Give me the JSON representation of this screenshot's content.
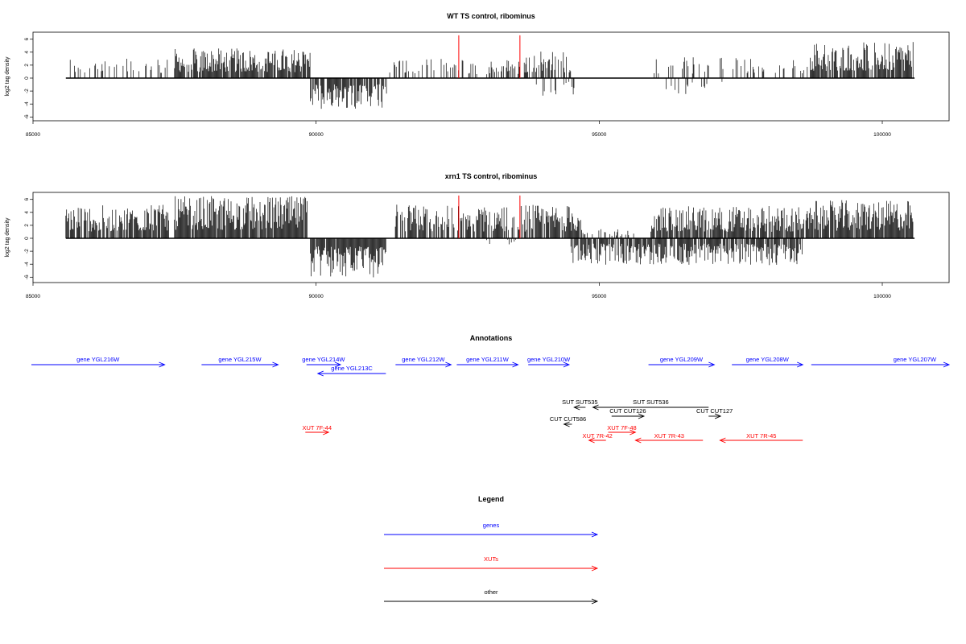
{
  "colors": {
    "genes": "#0000ff",
    "xuts": "#ff0000",
    "other": "#000000",
    "marker": "#ff0000"
  },
  "chart_data": [
    {
      "type": "bar",
      "title": "WT TS control, ribominus",
      "ylabel": "log2 tag density",
      "xlim": [
        85000,
        101180
      ],
      "ylim": [
        -6.5,
        7
      ],
      "xticks": [
        "85000",
        "90000",
        "95000",
        "100000"
      ],
      "xtick_values": [
        85000,
        90000,
        95000,
        100000
      ],
      "yticks": [
        "6",
        "4",
        "2",
        "0",
        "-2",
        "-4",
        "-6"
      ],
      "ytick_values": [
        6,
        4,
        2,
        0,
        -2,
        -4,
        -6
      ],
      "baseline_range": [
        85580,
        100570
      ],
      "marker_lines_x": [
        92520,
        93600
      ],
      "marker_height": 6.6,
      "positive_segments": [
        {
          "from": 85580,
          "to": 87400,
          "max": 3.2,
          "density": 0.28
        },
        {
          "from": 87500,
          "to": 89900,
          "max": 4.6,
          "density": 0.85
        },
        {
          "from": 91300,
          "to": 93650,
          "max": 3.0,
          "density": 0.35
        },
        {
          "from": 93650,
          "to": 94500,
          "max": 4.3,
          "density": 0.45
        },
        {
          "from": 95880,
          "to": 97600,
          "max": 3.3,
          "density": 0.22
        },
        {
          "from": 97600,
          "to": 98700,
          "max": 3.2,
          "density": 0.25
        },
        {
          "from": 98700,
          "to": 100550,
          "max": 5.6,
          "density": 0.85
        }
      ],
      "negative_segments": [
        {
          "from": 89900,
          "to": 91250,
          "max": 4.8,
          "density": 0.8
        },
        {
          "from": 93800,
          "to": 94700,
          "max": 2.9,
          "density": 0.12
        },
        {
          "from": 95800,
          "to": 97300,
          "max": 2.5,
          "density": 0.1
        }
      ]
    },
    {
      "type": "bar",
      "title": "xrn1 TS control, ribominus",
      "ylabel": "log2 tag density",
      "xlim": [
        85000,
        101180
      ],
      "ylim": [
        -6.5,
        7
      ],
      "xticks": [
        "85000",
        "90000",
        "95000",
        "100000"
      ],
      "xtick_values": [
        85000,
        90000,
        95000,
        100000
      ],
      "yticks": [
        "6",
        "4",
        "2",
        "0",
        "-2",
        "-4",
        "-6"
      ],
      "ytick_values": [
        6,
        4,
        2,
        0,
        -2,
        -4,
        -6
      ],
      "baseline_range": [
        85580,
        100570
      ],
      "marker_lines_x": [
        92520,
        93600
      ],
      "marker_height": 6.6,
      "positive_segments": [
        {
          "from": 85580,
          "to": 87400,
          "max": 5.2,
          "density": 0.8
        },
        {
          "from": 87500,
          "to": 89850,
          "max": 6.5,
          "density": 0.95
        },
        {
          "from": 91400,
          "to": 94700,
          "max": 5.2,
          "density": 0.75
        },
        {
          "from": 94700,
          "to": 95900,
          "max": 1.4,
          "density": 0.3
        },
        {
          "from": 95900,
          "to": 98800,
          "max": 5.0,
          "density": 0.85
        },
        {
          "from": 98800,
          "to": 100550,
          "max": 5.9,
          "density": 0.95
        }
      ],
      "negative_segments": [
        {
          "from": 89900,
          "to": 91250,
          "max": 6.2,
          "density": 0.95
        },
        {
          "from": 93000,
          "to": 93600,
          "max": 1.0,
          "density": 0.1
        },
        {
          "from": 94500,
          "to": 98600,
          "max": 4.2,
          "density": 0.75
        }
      ]
    }
  ],
  "annotations": {
    "title": "Annotations",
    "genes": [
      {
        "label": "gene YGL216W",
        "from": 85000,
        "to": 87350,
        "dir": 1,
        "row": 0
      },
      {
        "label": "gene YGL215W",
        "from": 88000,
        "to": 89350,
        "dir": 1,
        "row": 0
      },
      {
        "label": "gene YGL214W",
        "from": 89850,
        "to": 90450,
        "dir": 1,
        "row": 0
      },
      {
        "label": "gene YGL213C",
        "from": 90050,
        "to": 91250,
        "dir": -1,
        "row": 1
      },
      {
        "label": "gene YGL212W",
        "from": 91420,
        "to": 92400,
        "dir": 1,
        "row": 0
      },
      {
        "label": "gene YGL211W",
        "from": 92500,
        "to": 93580,
        "dir": 1,
        "row": 0
      },
      {
        "label": "gene YGL210W",
        "from": 93760,
        "to": 94480,
        "dir": 1,
        "row": 0
      },
      {
        "label": "gene YGL209W",
        "from": 95880,
        "to": 97040,
        "dir": 1,
        "row": 0
      },
      {
        "label": "gene YGL208W",
        "from": 97350,
        "to": 98600,
        "dir": 1,
        "row": 0
      },
      {
        "label": "gene YGL207W",
        "from": 98750,
        "to": 101180,
        "dir": 1,
        "row": 0,
        "labelAnchor": "end"
      }
    ],
    "others": [
      {
        "label": "SUT SUT535",
        "from": 94570,
        "to": 94770,
        "dir": -1,
        "row": 0
      },
      {
        "label": "SUT SUT536",
        "from": 94900,
        "to": 96940,
        "dir": -1,
        "row": 0
      },
      {
        "label": "CUT CUT126",
        "from": 95230,
        "to": 95800,
        "dir": 1,
        "row": 1
      },
      {
        "label": "CUT CUT127",
        "from": 96940,
        "to": 97150,
        "dir": 1,
        "row": 1
      },
      {
        "label": "CUT CUT586",
        "from": 94390,
        "to": 94530,
        "dir": -1,
        "row": 2
      }
    ],
    "xuts": [
      {
        "label": "XUT 7F-44",
        "from": 89830,
        "to": 90240,
        "dir": 1,
        "row": 0
      },
      {
        "label": "XUT 7F-48",
        "from": 95170,
        "to": 95650,
        "dir": 1,
        "row": 0
      },
      {
        "label": "XUT 7R-42",
        "from": 94830,
        "to": 95130,
        "dir": -1,
        "row": 1
      },
      {
        "label": "XUT 7R-43",
        "from": 95650,
        "to": 96840,
        "dir": -1,
        "row": 1
      },
      {
        "label": "XUT 7R-45",
        "from": 97140,
        "to": 98600,
        "dir": -1,
        "row": 1
      }
    ]
  },
  "legend": {
    "title": "Legend",
    "items": [
      {
        "label": "genes",
        "color": "#0000ff"
      },
      {
        "label": "XUTs",
        "color": "#ff0000"
      },
      {
        "label": "other",
        "color": "#000000"
      }
    ]
  }
}
